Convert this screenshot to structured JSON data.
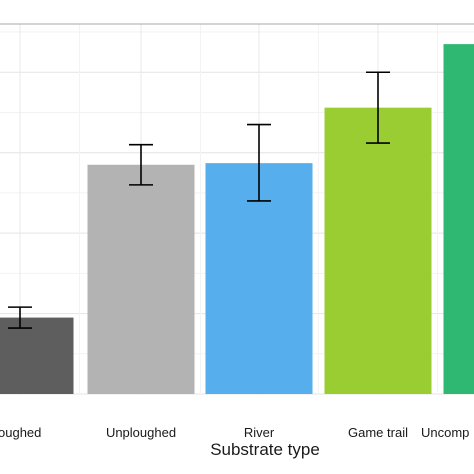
{
  "chart_data": {
    "type": "bar",
    "title": "",
    "xlabel": "Substrate type",
    "ylabel": "",
    "categories": [
      "Ploughed",
      "Unploughed",
      "River",
      "Game trail",
      "Uncompacted"
    ],
    "visible_tick_labels": [
      "oughed",
      "Unploughed",
      "River",
      "Game trail",
      "Uncomp"
    ],
    "values": [
      0.95,
      2.85,
      2.87,
      3.56,
      4.35
    ],
    "error_low": [
      0.82,
      2.6,
      2.4,
      3.12,
      null
    ],
    "error_high": [
      1.08,
      3.1,
      3.35,
      4.0,
      null
    ],
    "colors": [
      "#5e5e5e",
      "#b3b3b3",
      "#56aeec",
      "#9acd32",
      "#2eb872"
    ],
    "ylim": [
      0,
      4.6
    ],
    "grid": true,
    "legend": "none"
  }
}
